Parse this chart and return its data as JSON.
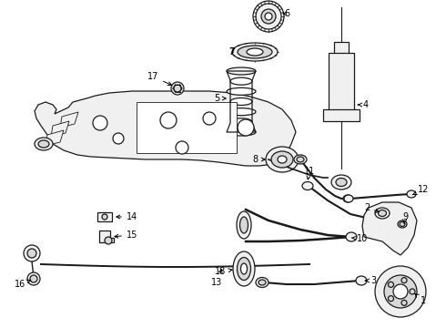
{
  "bg_color": "#ffffff",
  "fig_width": 4.9,
  "fig_height": 3.6,
  "dpi": 100,
  "line_color": "#1a1a1a",
  "label_color": "#000000",
  "font_size": 7.0,
  "lw": 0.9
}
